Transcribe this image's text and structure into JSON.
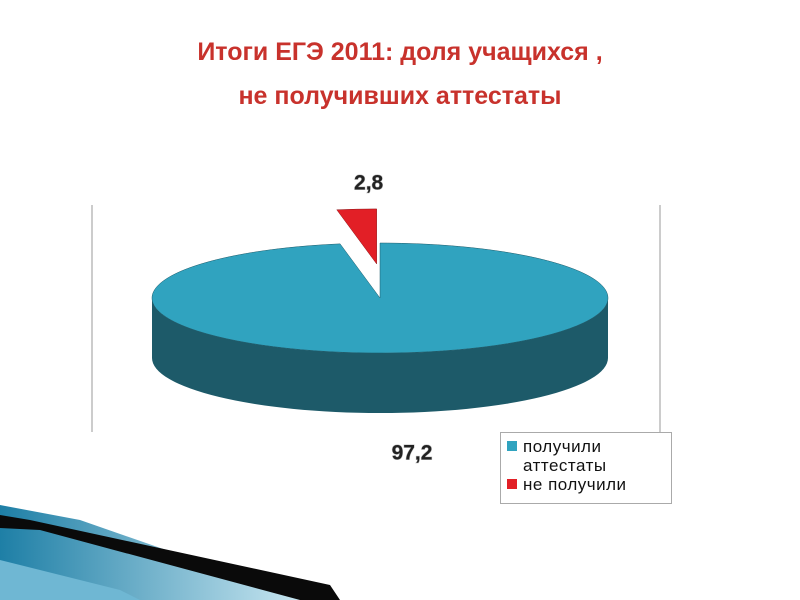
{
  "chart_data": {
    "type": "pie3d",
    "title": [
      "Итоги ЕГЭ 2011: доля учащихся ,",
      "не получивших аттестаты"
    ],
    "series": [
      {
        "name": "получили аттестаты",
        "color": "#30a3bf",
        "side_color": "#1d5a69",
        "values": [
          97.2
        ],
        "value_labels": [
          "97,2"
        ],
        "explode": false
      },
      {
        "name": "не получили",
        "color": "#e21f26",
        "side_color": "#8c1518",
        "values": [
          2.8
        ],
        "value_labels": [
          "2,8"
        ],
        "explode": true
      }
    ]
  }
}
